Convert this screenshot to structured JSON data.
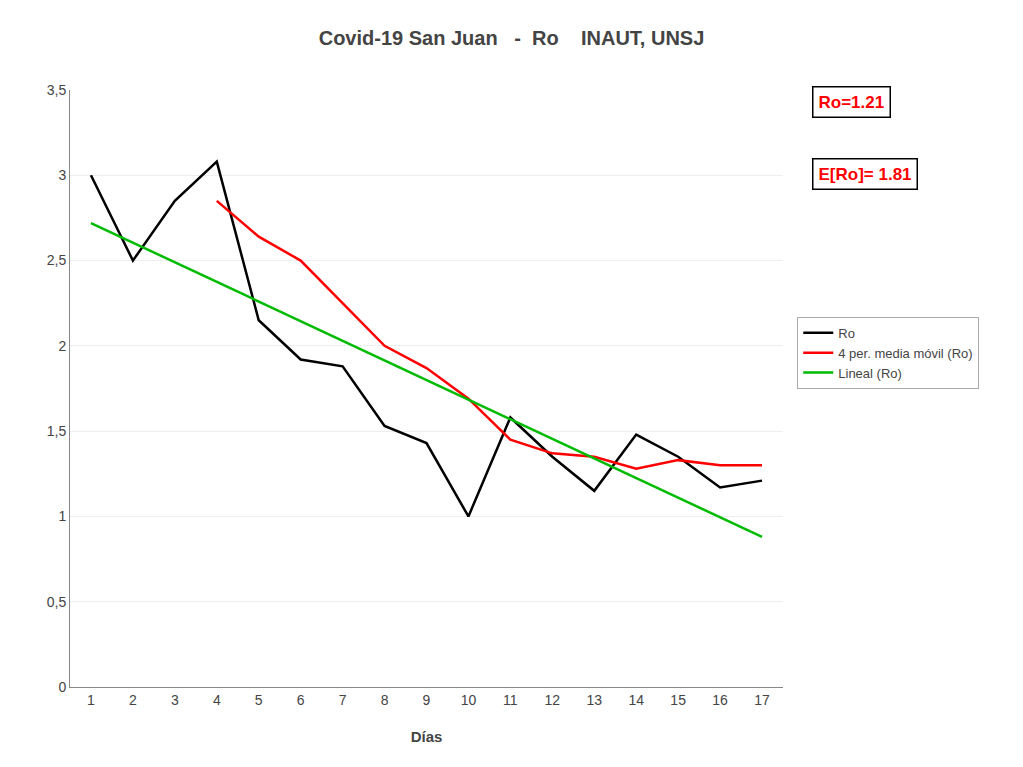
{
  "chart_data": {
    "type": "line",
    "title": "Covid-19 San Juan   -  Ro    INAUT, UNSJ",
    "xlabel": "Días",
    "x": [
      1,
      2,
      3,
      4,
      5,
      6,
      7,
      8,
      9,
      10,
      11,
      12,
      13,
      14,
      15,
      16,
      17
    ],
    "series": [
      {
        "name": "Ro",
        "color": "#000000",
        "values": [
          3.0,
          2.5,
          2.85,
          3.08,
          2.15,
          1.92,
          1.88,
          1.53,
          1.43,
          1.0,
          1.58,
          1.35,
          1.15,
          1.48,
          1.35,
          1.17,
          1.21
        ]
      },
      {
        "name": "4 per. media móvil (Ro)",
        "color": "#ff0000",
        "values": [
          null,
          null,
          null,
          2.85,
          2.64,
          2.5,
          2.25,
          2.0,
          1.87,
          1.69,
          1.45,
          1.37,
          1.35,
          1.28,
          1.33,
          1.3,
          1.3
        ]
      },
      {
        "name": "Lineal (Ro)",
        "color": "#00bb00",
        "x": [
          1,
          17
        ],
        "values": [
          2.72,
          0.88
        ]
      }
    ],
    "xlim": [
      0.5,
      17.5
    ],
    "xticks": [
      1,
      2,
      3,
      4,
      5,
      6,
      7,
      8,
      9,
      10,
      11,
      12,
      13,
      14,
      15,
      16,
      17
    ],
    "ylim": [
      0,
      3.5
    ],
    "yticks": [
      0,
      {
        "value": 0.5,
        "label": "0,5"
      },
      1,
      {
        "value": 1.5,
        "label": "1,5"
      },
      2,
      {
        "value": 2.5,
        "label": "2,5"
      },
      3,
      {
        "value": 3.5,
        "label": "3,5"
      }
    ],
    "grid": "y",
    "legend": "right",
    "annotations": [
      {
        "text": "Ro=1.21",
        "color": "#ff0000"
      },
      {
        "text": "E[Ro]= 1.81",
        "color": "#ff0000"
      }
    ]
  }
}
